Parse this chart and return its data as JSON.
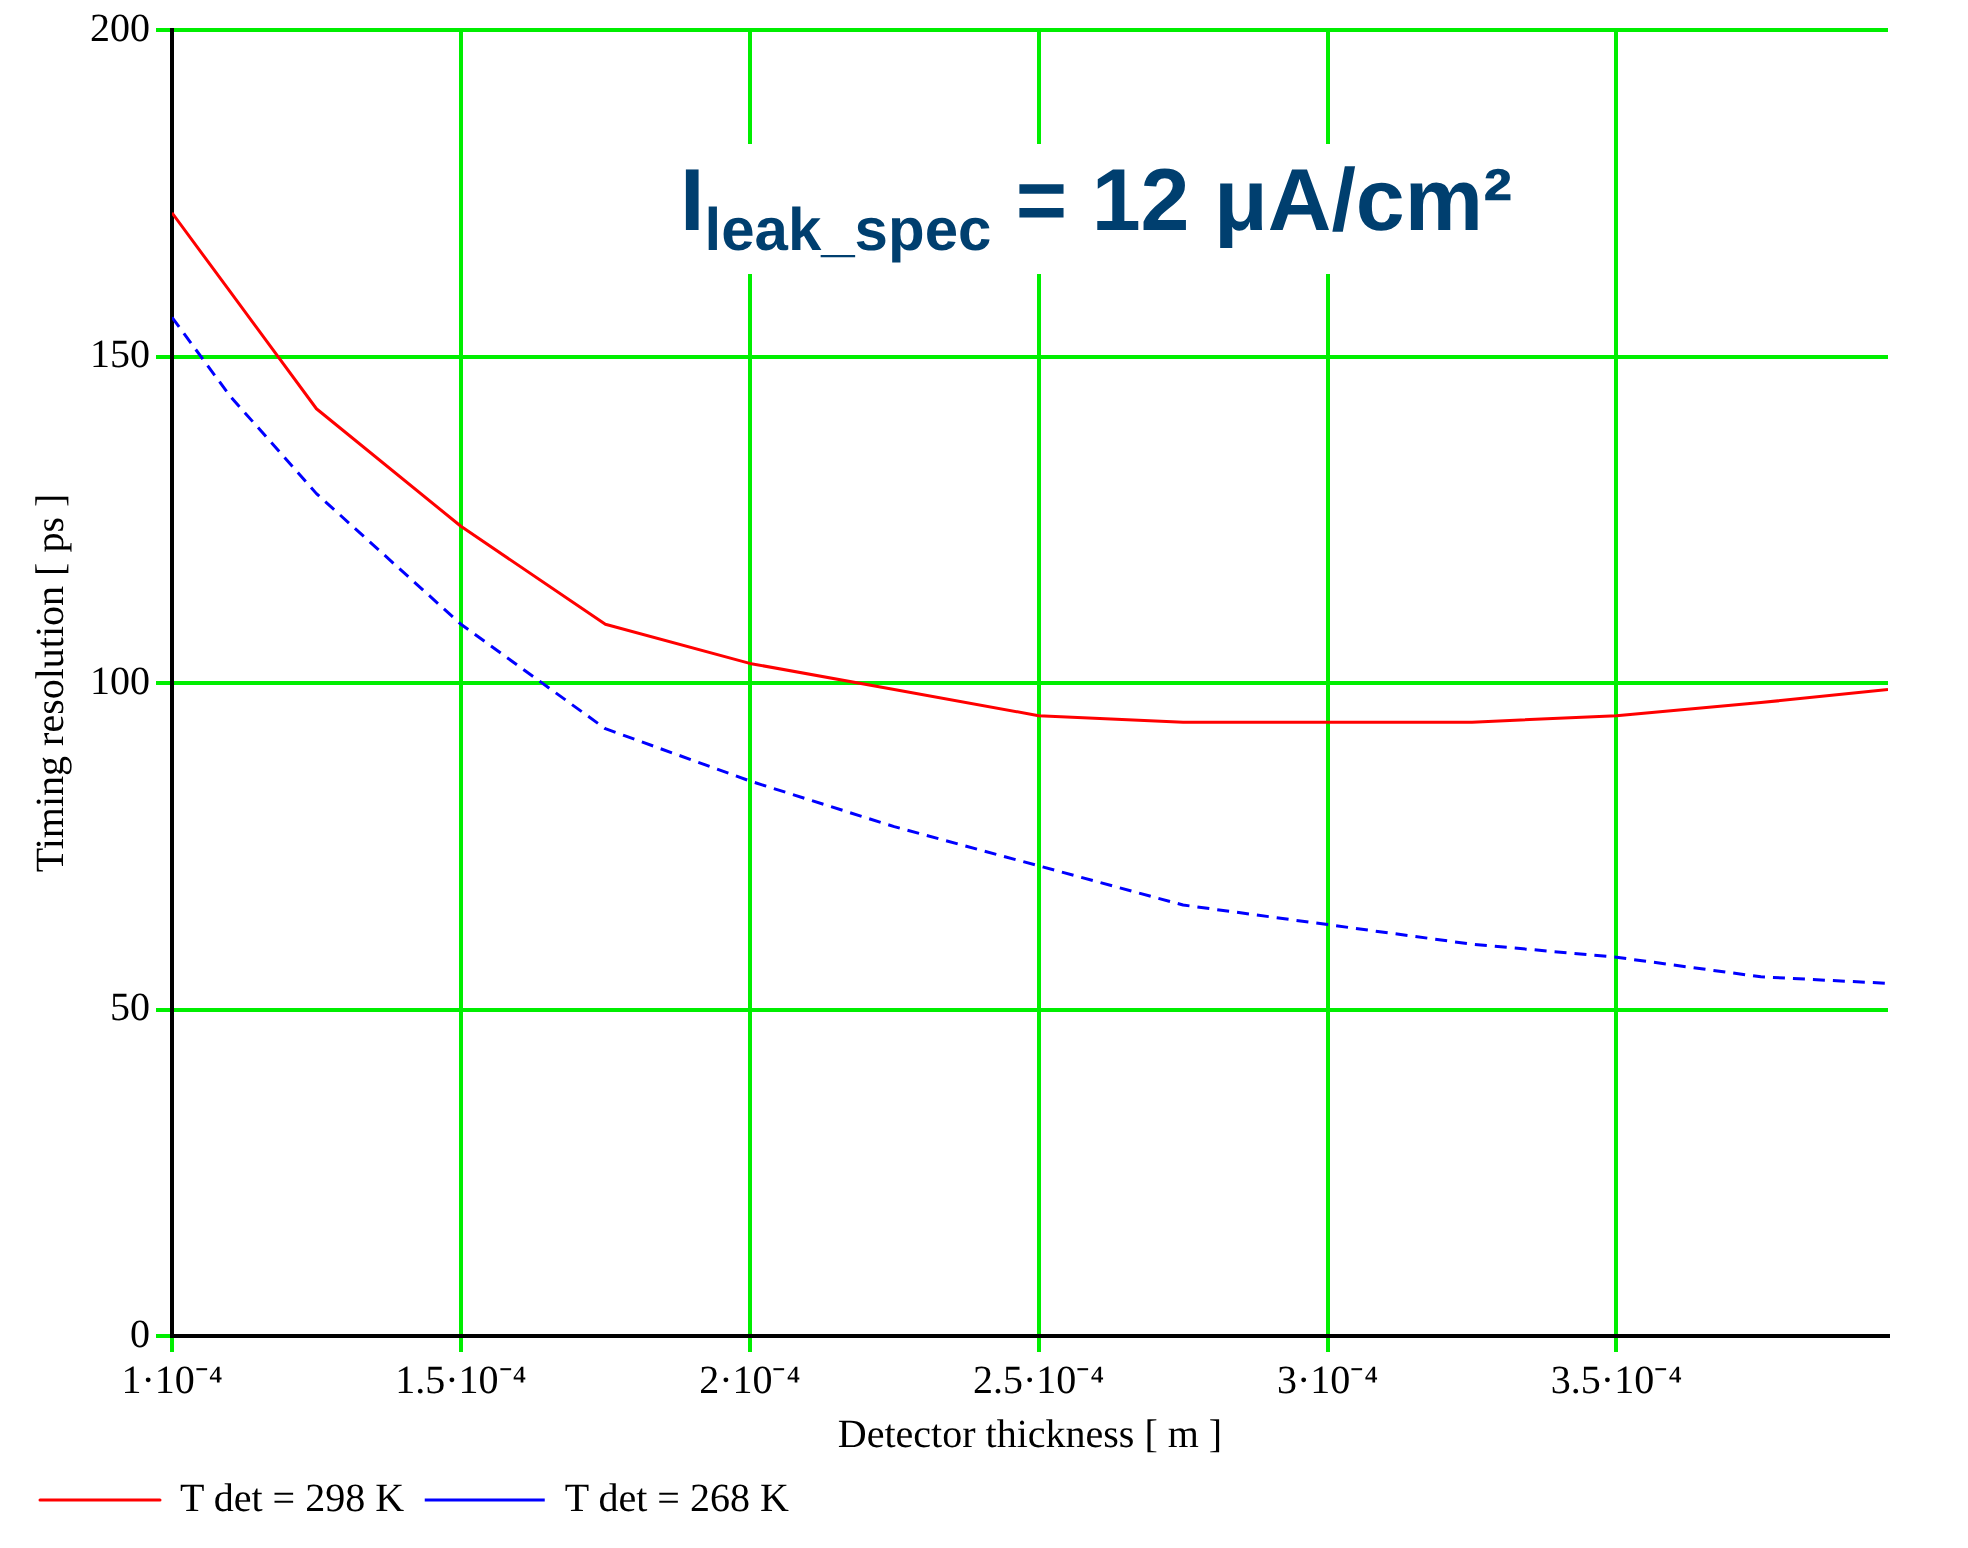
{
  "chart_data": {
    "type": "line",
    "xlabel": "Detector thickness [ m ]",
    "ylabel": "Timing resolution [ ps ]",
    "annotations": [
      "I$_{leak_spec}$ = 12 μA/cm²"
    ],
    "x": [
      0.0001,
      0.00011,
      0.000125,
      0.00015,
      0.000175,
      0.0002,
      0.000225,
      0.00025,
      0.000275,
      0.0003,
      0.000325,
      0.00035,
      0.000375,
      0.000397
    ],
    "series": [
      {
        "name": "T det = 298 K",
        "color": "#ff0000",
        "line_style": "solid",
        "values": [
          172,
          160,
          142,
          124,
          109,
          103,
          99,
          95,
          94,
          94,
          94,
          95,
          97,
          99
        ]
      },
      {
        "name": "T det = 268 K",
        "color": "#0000ff",
        "line_style": "dashed",
        "values": [
          156,
          144,
          129,
          109,
          93,
          85,
          78,
          72,
          66,
          63,
          60,
          58,
          55,
          54
        ]
      }
    ],
    "xlim": [
      0.0001,
      0.000397
    ],
    "xticks": [
      {
        "value": 0.0001,
        "label": "1·10⁻⁴"
      },
      {
        "value": 0.00015,
        "label": "1.5·10⁻⁴"
      },
      {
        "value": 0.0002,
        "label": "2·10⁻⁴"
      },
      {
        "value": 0.00025,
        "label": "2.5·10⁻⁴"
      },
      {
        "value": 0.0003,
        "label": "3·10⁻⁴"
      },
      {
        "value": 0.00035,
        "label": "3.5·10⁻⁴"
      }
    ],
    "ylim": [
      0,
      200
    ],
    "yticks": [
      0,
      50,
      100,
      150,
      200
    ],
    "grid": true,
    "legend": "bottom left"
  }
}
